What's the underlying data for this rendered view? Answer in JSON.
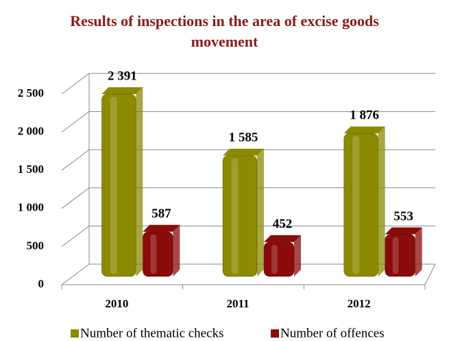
{
  "chart_data": {
    "type": "bar3d",
    "title": "Results of inspections in the area of excise goods movement",
    "categories": [
      "2010",
      "2011",
      "2012"
    ],
    "series": [
      {
        "name": "Number of thematic checks",
        "color": "#8c8a00",
        "values": [
          2391,
          1585,
          1876
        ],
        "value_labels": [
          "2 391",
          "1 585",
          "1 876"
        ]
      },
      {
        "name": "Number of offences",
        "color": "#8b0a0a",
        "values": [
          587,
          452,
          553
        ],
        "value_labels": [
          "587",
          "452",
          "553"
        ]
      }
    ],
    "ylim": [
      0,
      2500
    ],
    "yticks": [
      0,
      500,
      {
        "value": 1000,
        "label": "1 000"
      },
      {
        "value": 1500,
        "label": "1 500"
      },
      {
        "value": 2000,
        "label": "2 000"
      },
      {
        "value": 2500,
        "label": "2 500"
      }
    ],
    "grid": true,
    "legend": "bottom"
  }
}
